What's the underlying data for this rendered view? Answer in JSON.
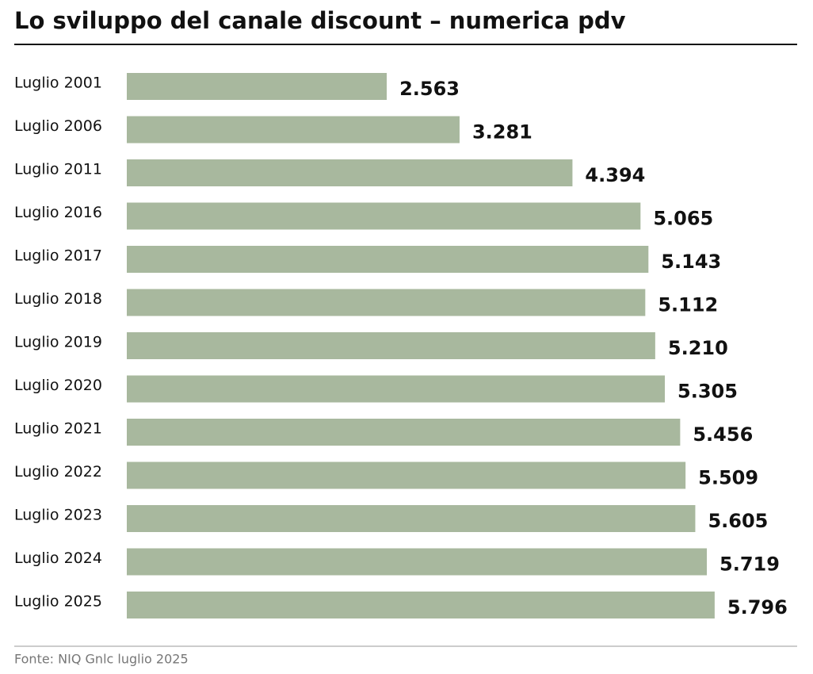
{
  "chart_data": {
    "type": "bar",
    "orientation": "horizontal",
    "title": "Lo sviluppo del canale discount – numerica pdv",
    "source": "Fonte: NIQ Gnlc luglio 2025",
    "categories": [
      "Luglio 2001",
      "Luglio 2006",
      "Luglio 2011",
      "Luglio 2016",
      "Luglio 2017",
      "Luglio 2018",
      "Luglio 2019",
      "Luglio 2020",
      "Luglio 2021",
      "Luglio 2022",
      "Luglio 2023",
      "Luglio 2024",
      "Luglio 2025"
    ],
    "values": [
      2563,
      3281,
      4394,
      5065,
      5143,
      5112,
      5210,
      5305,
      5456,
      5509,
      5605,
      5719,
      5796
    ],
    "value_labels": [
      "2.563",
      "3.281",
      "4.394",
      "5.065",
      "5.143",
      "5.112",
      "5.210",
      "5.305",
      "5.456",
      "5.509",
      "5.605",
      "5.719",
      "5.796"
    ],
    "color": "#a8b89e",
    "xlim": [
      0,
      6000
    ]
  }
}
